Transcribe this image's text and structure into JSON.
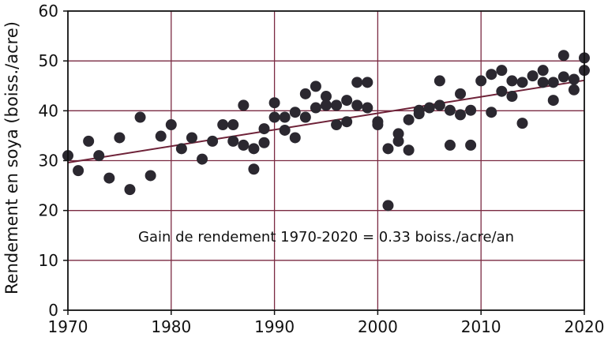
{
  "chart_data": {
    "type": "scatter",
    "ylabel": "Rendement en soya (boiss./acre)",
    "xlabel": "",
    "xlim": [
      1970,
      2020
    ],
    "ylim": [
      0,
      60
    ],
    "x_ticks": [
      "1970",
      "1980",
      "1990",
      "2000",
      "2010",
      "2020"
    ],
    "y_ticks": [
      "0",
      "10",
      "20",
      "30",
      "40",
      "50",
      "60"
    ],
    "grid": true,
    "annotation": "Gain de rendement 1970-2020 = 0.33 boiss./acre/an",
    "trend_line": {
      "x": [
        1970,
        2020
      ],
      "y": [
        29.6,
        46.1
      ]
    },
    "points": [
      {
        "x": 1970,
        "y": 31.0
      },
      {
        "x": 1971,
        "y": 28.0
      },
      {
        "x": 1972,
        "y": 33.9
      },
      {
        "x": 1973,
        "y": 31.0
      },
      {
        "x": 1974,
        "y": 26.5
      },
      {
        "x": 1975,
        "y": 34.6
      },
      {
        "x": 1976,
        "y": 24.2
      },
      {
        "x": 1977,
        "y": 38.7
      },
      {
        "x": 1978,
        "y": 27.0
      },
      {
        "x": 1979,
        "y": 34.9
      },
      {
        "x": 1980,
        "y": 37.2
      },
      {
        "x": 1981,
        "y": 32.4
      },
      {
        "x": 1982,
        "y": 34.6
      },
      {
        "x": 1983,
        "y": 30.3
      },
      {
        "x": 1984,
        "y": 33.9
      },
      {
        "x": 1985,
        "y": 37.2
      },
      {
        "x": 1986,
        "y": 37.2
      },
      {
        "x": 1986,
        "y": 33.9
      },
      {
        "x": 1987,
        "y": 41.1
      },
      {
        "x": 1987,
        "y": 33.1
      },
      {
        "x": 1988,
        "y": 28.3
      },
      {
        "x": 1988,
        "y": 32.4
      },
      {
        "x": 1989,
        "y": 36.4
      },
      {
        "x": 1989,
        "y": 33.6
      },
      {
        "x": 1990,
        "y": 41.6
      },
      {
        "x": 1990,
        "y": 38.7
      },
      {
        "x": 1991,
        "y": 38.7
      },
      {
        "x": 1991,
        "y": 36.1
      },
      {
        "x": 1992,
        "y": 39.7
      },
      {
        "x": 1992,
        "y": 34.6
      },
      {
        "x": 1993,
        "y": 43.4
      },
      {
        "x": 1993,
        "y": 38.7
      },
      {
        "x": 1994,
        "y": 44.9
      },
      {
        "x": 1994,
        "y": 40.6
      },
      {
        "x": 1995,
        "y": 42.9
      },
      {
        "x": 1995,
        "y": 41.1
      },
      {
        "x": 1996,
        "y": 41.1
      },
      {
        "x": 1996,
        "y": 37.2
      },
      {
        "x": 1997,
        "y": 42.1
      },
      {
        "x": 1997,
        "y": 37.8
      },
      {
        "x": 1998,
        "y": 45.7
      },
      {
        "x": 1998,
        "y": 41.1
      },
      {
        "x": 1999,
        "y": 45.7
      },
      {
        "x": 1999,
        "y": 40.6
      },
      {
        "x": 2000,
        "y": 37.8
      },
      {
        "x": 2000,
        "y": 37.2
      },
      {
        "x": 2001,
        "y": 21.0
      },
      {
        "x": 2001,
        "y": 32.4
      },
      {
        "x": 2002,
        "y": 35.4
      },
      {
        "x": 2002,
        "y": 33.9
      },
      {
        "x": 2003,
        "y": 38.2
      },
      {
        "x": 2003,
        "y": 32.1
      },
      {
        "x": 2004,
        "y": 39.4
      },
      {
        "x": 2004,
        "y": 40.1
      },
      {
        "x": 2005,
        "y": 40.6
      },
      {
        "x": 2006,
        "y": 46.0
      },
      {
        "x": 2006,
        "y": 41.1
      },
      {
        "x": 2007,
        "y": 40.1
      },
      {
        "x": 2007,
        "y": 33.1
      },
      {
        "x": 2008,
        "y": 43.4
      },
      {
        "x": 2008,
        "y": 39.2
      },
      {
        "x": 2009,
        "y": 40.1
      },
      {
        "x": 2009,
        "y": 33.1
      },
      {
        "x": 2010,
        "y": 46.0
      },
      {
        "x": 2011,
        "y": 47.3
      },
      {
        "x": 2011,
        "y": 39.7
      },
      {
        "x": 2012,
        "y": 48.1
      },
      {
        "x": 2012,
        "y": 43.9
      },
      {
        "x": 2013,
        "y": 46.0
      },
      {
        "x": 2013,
        "y": 42.9
      },
      {
        "x": 2014,
        "y": 45.7
      },
      {
        "x": 2014,
        "y": 37.5
      },
      {
        "x": 2015,
        "y": 47.0
      },
      {
        "x": 2016,
        "y": 48.1
      },
      {
        "x": 2016,
        "y": 45.7
      },
      {
        "x": 2017,
        "y": 45.7
      },
      {
        "x": 2017,
        "y": 42.1
      },
      {
        "x": 2018,
        "y": 51.1
      },
      {
        "x": 2018,
        "y": 46.8
      },
      {
        "x": 2019,
        "y": 46.3
      },
      {
        "x": 2019,
        "y": 44.2
      },
      {
        "x": 2020,
        "y": 50.6
      },
      {
        "x": 2020,
        "y": 48.1
      }
    ],
    "colors": {
      "points": "#2b2830",
      "trend": "#6e2238",
      "grid": "#7a2a42",
      "axis": "#111111"
    }
  }
}
